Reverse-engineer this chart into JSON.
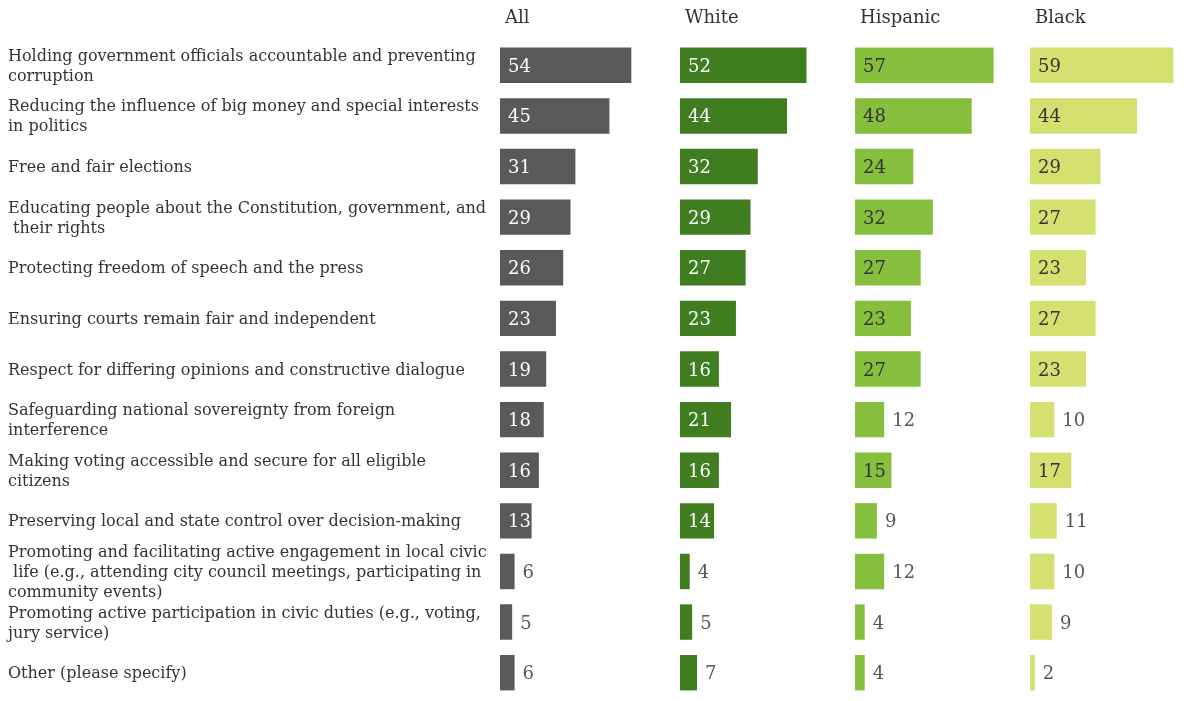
{
  "chart_data": [
    {
      "type": "bar",
      "orientation": "horizontal",
      "title": "All",
      "color": "#58595b",
      "data_labels": true,
      "tick_labels": "y",
      "categories": [
        "Holding government officials accountable and preventing corruption",
        "Reducing the influence of big money and special interests in politics",
        "Free and fair elections",
        "Educating people about the Constitution, government, and their rights",
        "Protecting freedom of speech and the press",
        "Ensuring courts remain fair and independent",
        "Respect for differing opinions and constructive dialogue",
        "Safeguarding national sovereignty from foreign interference",
        "Making voting accessible and secure for all eligible citizens",
        "Preserving local and state control over decision-making",
        "Promoting and facilitating active engagement in local civic life (e.g., attending city council meetings, participating in community events)",
        "Promoting active participation in civic duties (e.g., voting, jury service)",
        "Other (please specify)"
      ],
      "values": [
        54,
        45,
        31,
        29,
        26,
        23,
        19,
        18,
        16,
        13,
        6,
        5,
        6
      ]
    },
    {
      "type": "bar",
      "orientation": "horizontal",
      "title": "White",
      "color": "#3f7d20",
      "data_labels": true,
      "tick_labels": false,
      "categories": [
        null,
        null,
        null,
        null,
        null,
        null,
        null,
        null,
        null,
        null,
        null,
        null,
        null
      ],
      "values": [
        52,
        44,
        32,
        29,
        27,
        23,
        16,
        21,
        16,
        14,
        4,
        5,
        7
      ]
    },
    {
      "type": "bar",
      "orientation": "horizontal",
      "title": "Hispanic",
      "color": "#86bf3e",
      "data_labels": true,
      "tick_labels": false,
      "categories": [
        null,
        null,
        null,
        null,
        null,
        null,
        null,
        null,
        null,
        null,
        null,
        null,
        null
      ],
      "values": [
        57,
        48,
        24,
        32,
        27,
        23,
        27,
        12,
        15,
        9,
        12,
        4,
        4
      ]
    },
    {
      "type": "bar",
      "orientation": "horizontal",
      "title": "Black",
      "color": "#d4e06f",
      "data_labels": true,
      "tick_labels": false,
      "categories": [
        null,
        null,
        null,
        null,
        null,
        null,
        null,
        null,
        null,
        null,
        null,
        null,
        null
      ],
      "values": [
        59,
        44,
        29,
        27,
        23,
        27,
        23,
        10,
        17,
        11,
        10,
        9,
        2
      ]
    }
  ]
}
